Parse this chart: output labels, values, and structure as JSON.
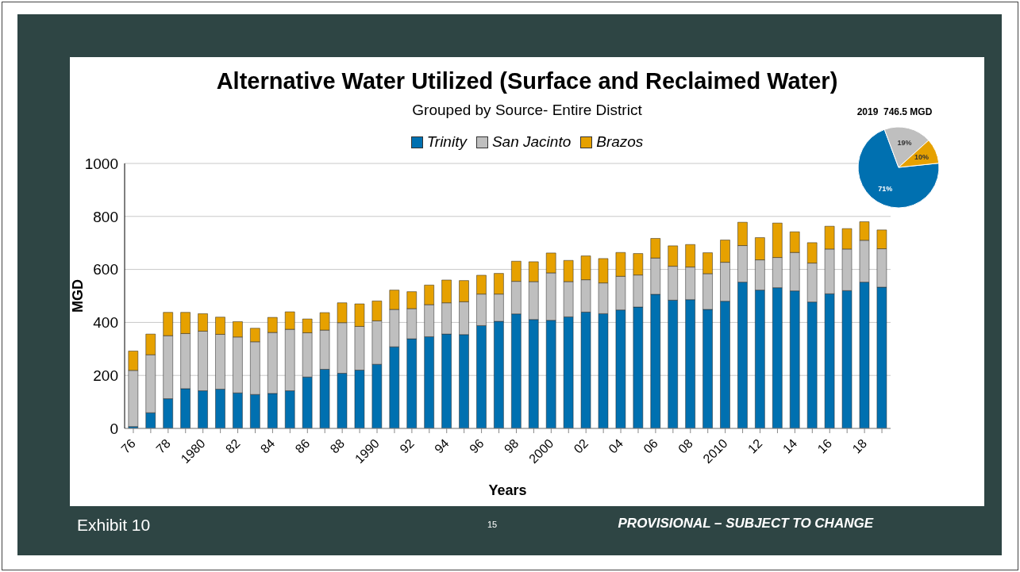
{
  "chart_data": [
    {
      "type": "bar",
      "title": "Alternative Water Utilized (Surface and Reclaimed Water)",
      "subtitle": "Grouped by Source- Entire District",
      "xlabel": "Years",
      "ylabel": "MGD",
      "categories": [
        "76",
        null,
        "78",
        null,
        "1980",
        null,
        "82",
        null,
        "84",
        null,
        "86",
        null,
        "88",
        null,
        "1990",
        null,
        "92",
        null,
        "94",
        null,
        "96",
        null,
        "98",
        null,
        "2000",
        null,
        "02",
        null,
        "04",
        null,
        "06",
        null,
        "08",
        null,
        "2010",
        null,
        "12",
        null,
        "14",
        null,
        "16",
        null,
        "18",
        null
      ],
      "series": [
        {
          "name": "Trinity",
          "color": "#0070b0",
          "values": [
            7,
            59,
            112,
            150,
            142,
            148,
            134,
            128,
            132,
            142,
            194,
            223,
            208,
            220,
            242,
            308,
            338,
            346,
            356,
            354,
            388,
            404,
            432,
            411,
            408,
            421,
            439,
            433,
            447,
            458,
            506,
            484,
            486,
            449,
            480,
            552,
            522,
            531,
            519,
            477,
            508,
            520,
            552,
            533
          ]
        },
        {
          "name": "San Jacinto",
          "color": "#bfbfbf",
          "values": [
            212,
            219,
            238,
            208,
            225,
            207,
            211,
            199,
            230,
            232,
            167,
            148,
            191,
            165,
            164,
            141,
            114,
            121,
            118,
            124,
            119,
            103,
            123,
            143,
            179,
            133,
            122,
            116,
            127,
            121,
            137,
            128,
            123,
            135,
            147,
            138,
            114,
            114,
            145,
            147,
            169,
            157,
            158,
            145
          ]
        },
        {
          "name": "Brazos",
          "color": "#e6a100",
          "values": [
            73,
            78,
            88,
            80,
            66,
            65,
            58,
            51,
            57,
            66,
            52,
            66,
            75,
            85,
            75,
            73,
            64,
            74,
            86,
            80,
            71,
            78,
            76,
            75,
            75,
            80,
            90,
            92,
            90,
            81,
            74,
            77,
            85,
            79,
            84,
            88,
            84,
            130,
            78,
            77,
            86,
            77,
            70,
            71
          ]
        }
      ],
      "stacked": true,
      "ylim": [
        0,
        1000
      ],
      "yticks": [
        0,
        200,
        400,
        600,
        800,
        1000
      ],
      "grid": "y",
      "legend": "top",
      "annotations": [
        "Exhibit 10",
        "15",
        "PROVISIONAL – SUBJECT TO CHANGE"
      ]
    },
    {
      "type": "pie",
      "title": "2019  746.5 MGD",
      "categories": [
        null,
        null,
        null
      ],
      "values": [
        71,
        19,
        10
      ],
      "colors": [
        "#0070b0",
        "#bfbfbf",
        "#e6a100"
      ],
      "value_labels": [
        "71%",
        "19%",
        "10%"
      ]
    }
  ]
}
